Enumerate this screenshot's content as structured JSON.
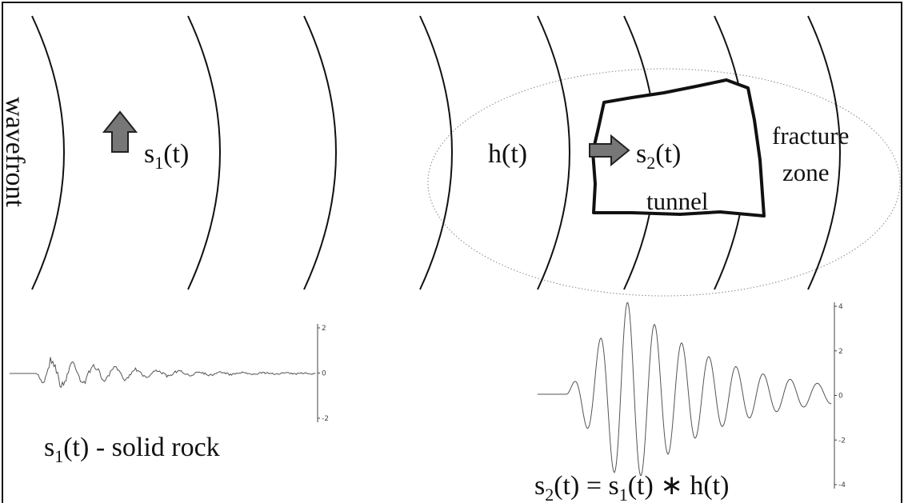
{
  "labels": {
    "wavefront": "wavefront",
    "s1": [
      "s",
      "1",
      "(t)"
    ],
    "h": "h(t)",
    "s2": [
      "s",
      "2",
      "(t)"
    ],
    "tunnel": "tunnel",
    "fracture": "fracture",
    "zone": "zone",
    "caption_left": [
      "s",
      "1",
      "(t) - solid rock"
    ],
    "caption_right": [
      "s",
      "2",
      "(t) = s",
      "1",
      "(t) ∗ h(t)"
    ]
  },
  "plot_left": {
    "ticks": [
      2,
      0,
      -2
    ]
  },
  "plot_right": {
    "ticks": [
      4,
      2,
      0,
      -2,
      -4
    ]
  }
}
